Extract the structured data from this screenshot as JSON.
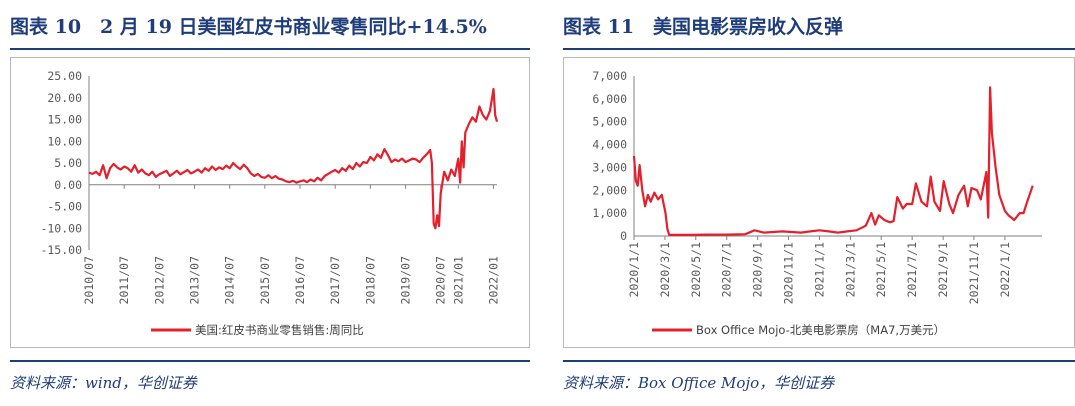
{
  "left": {
    "title": "图表 10　2 月 19 日美国红皮书商业零售同比+14.5%",
    "source": "资料来源：wind，华创证券",
    "chart_data": {
      "type": "line",
      "ylim": [
        -15,
        25
      ],
      "yticks": [
        "25.00",
        "20.00",
        "15.00",
        "10.00",
        "5.00",
        "0.00",
        "-5.00",
        "-10.00",
        "-15.00"
      ],
      "xlim": [
        2010.5,
        2022.1
      ],
      "xticks": [
        "2010/07",
        "2011/07",
        "2012/07",
        "2013/07",
        "2014/07",
        "2015/07",
        "2016/07",
        "2017/07",
        "2018/07",
        "2019/07",
        "2020/07",
        "2021/01",
        "2022/01"
      ],
      "xtick_positions": [
        2010.5,
        2011.5,
        2012.5,
        2013.5,
        2014.5,
        2015.5,
        2016.5,
        2017.5,
        2018.5,
        2019.5,
        2020.5,
        2021.0,
        2022.0
      ],
      "legend_position": "bottom-center",
      "color": "#e3202b",
      "series": [
        {
          "name": "美国:红皮书商业零售销售:周同比",
          "x": [
            2010.5,
            2010.6,
            2010.7,
            2010.8,
            2010.9,
            2011.0,
            2011.1,
            2011.2,
            2011.3,
            2011.4,
            2011.5,
            2011.6,
            2011.7,
            2011.8,
            2011.9,
            2012.0,
            2012.1,
            2012.2,
            2012.3,
            2012.4,
            2012.5,
            2012.6,
            2012.7,
            2012.8,
            2012.9,
            2013.0,
            2013.1,
            2013.2,
            2013.3,
            2013.4,
            2013.5,
            2013.6,
            2013.7,
            2013.8,
            2013.9,
            2014.0,
            2014.1,
            2014.2,
            2014.3,
            2014.4,
            2014.5,
            2014.6,
            2014.7,
            2014.8,
            2014.9,
            2015.0,
            2015.1,
            2015.2,
            2015.3,
            2015.4,
            2015.5,
            2015.6,
            2015.7,
            2015.8,
            2015.9,
            2016.0,
            2016.1,
            2016.2,
            2016.3,
            2016.4,
            2016.5,
            2016.6,
            2016.7,
            2016.8,
            2016.9,
            2017.0,
            2017.1,
            2017.2,
            2017.3,
            2017.4,
            2017.5,
            2017.6,
            2017.7,
            2017.8,
            2017.9,
            2018.0,
            2018.1,
            2018.2,
            2018.3,
            2018.4,
            2018.5,
            2018.6,
            2018.7,
            2018.8,
            2018.9,
            2019.0,
            2019.1,
            2019.2,
            2019.3,
            2019.4,
            2019.5,
            2019.6,
            2019.7,
            2019.8,
            2019.9,
            2020.0,
            2020.1,
            2020.2,
            2020.25,
            2020.3,
            2020.35,
            2020.4,
            2020.45,
            2020.5,
            2020.6,
            2020.7,
            2020.8,
            2020.9,
            2021.0,
            2021.05,
            2021.1,
            2021.15,
            2021.2,
            2021.3,
            2021.4,
            2021.5,
            2021.6,
            2021.7,
            2021.8,
            2021.9,
            2022.0,
            2022.05,
            2022.1
          ],
          "values": [
            2.8,
            2.5,
            3.0,
            2.2,
            4.5,
            1.5,
            3.8,
            4.8,
            4.0,
            3.5,
            4.2,
            3.8,
            3.0,
            4.5,
            2.8,
            3.5,
            2.6,
            2.2,
            3.0,
            1.8,
            2.4,
            2.8,
            3.2,
            2.0,
            2.6,
            3.2,
            2.4,
            2.9,
            3.4,
            2.6,
            3.0,
            3.5,
            2.8,
            3.8,
            3.2,
            4.2,
            3.4,
            4.0,
            3.6,
            4.4,
            3.8,
            5.0,
            4.2,
            3.6,
            4.6,
            3.8,
            2.6,
            2.0,
            2.5,
            1.8,
            1.6,
            2.2,
            1.5,
            2.0,
            1.4,
            1.2,
            0.8,
            0.6,
            0.9,
            0.5,
            0.8,
            1.0,
            0.6,
            1.2,
            0.8,
            1.6,
            1.0,
            2.0,
            2.5,
            3.0,
            3.4,
            2.8,
            3.8,
            3.2,
            4.4,
            3.6,
            5.0,
            4.2,
            5.2,
            5.0,
            6.4,
            5.6,
            7.0,
            6.2,
            8.2,
            6.8,
            5.2,
            5.8,
            5.4,
            6.0,
            5.2,
            5.6,
            6.0,
            5.8,
            5.2,
            6.2,
            7.0,
            8.0,
            5.0,
            -9.0,
            -10.0,
            -7.0,
            -9.5,
            -2.0,
            3.0,
            1.0,
            3.5,
            2.0,
            6.0,
            0.5,
            10.0,
            4.0,
            12.0,
            14.0,
            15.5,
            14.5,
            18.0,
            16.0,
            15.0,
            17.0,
            22.0,
            16.0,
            14.5
          ]
        }
      ]
    }
  },
  "right": {
    "title": "图表 11　美国电影票房收入反弹",
    "source": "资料来源：Box Office Mojo，华创证券",
    "chart_data": {
      "type": "line",
      "ylim": [
        0,
        7000
      ],
      "yticks": [
        "7,000",
        "6,000",
        "5,000",
        "4,000",
        "3,000",
        "2,000",
        "1,000",
        "0"
      ],
      "xlim": [
        2020.0,
        2022.2
      ],
      "xticks": [
        "2020/1/1",
        "2020/3/1",
        "2020/5/1",
        "2020/7/1",
        "2020/9/1",
        "2020/11/1",
        "2021/1/1",
        "2021/3/1",
        "2021/5/1",
        "2021/7/1",
        "2021/9/1",
        "2021/11/1",
        "2022/1/1"
      ],
      "xtick_positions": [
        2020.0,
        2020.167,
        2020.333,
        2020.5,
        2020.667,
        2020.833,
        2021.0,
        2021.167,
        2021.333,
        2021.5,
        2021.667,
        2021.833,
        2022.0
      ],
      "legend_position": "bottom-center",
      "color": "#e3202b",
      "series": [
        {
          "name": "Box Office Mojo-北美电影票房（MA7,万美元）",
          "x": [
            2020.0,
            2020.01,
            2020.02,
            2020.03,
            2020.045,
            2020.06,
            2020.075,
            2020.09,
            2020.11,
            2020.13,
            2020.15,
            2020.17,
            2020.18,
            2020.19,
            2020.2,
            2020.25,
            2020.3,
            2020.4,
            2020.5,
            2020.6,
            2020.65,
            2020.7,
            2020.8,
            2020.9,
            2020.95,
            2021.0,
            2021.05,
            2021.1,
            2021.15,
            2021.2,
            2021.25,
            2021.28,
            2021.3,
            2021.32,
            2021.35,
            2021.38,
            2021.4,
            2021.42,
            2021.45,
            2021.47,
            2021.5,
            2021.52,
            2021.55,
            2021.58,
            2021.6,
            2021.62,
            2021.65,
            2021.67,
            2021.7,
            2021.72,
            2021.75,
            2021.78,
            2021.8,
            2021.82,
            2021.85,
            2021.87,
            2021.9,
            2021.91,
            2021.92,
            2021.93,
            2021.95,
            2021.97,
            2022.0,
            2022.02,
            2022.05,
            2022.08,
            2022.1,
            2022.12,
            2022.15
          ],
          "values": [
            3500,
            2400,
            2200,
            3100,
            2000,
            1300,
            1800,
            1500,
            1900,
            1600,
            1800,
            1000,
            300,
            50,
            50,
            50,
            50,
            60,
            60,
            80,
            250,
            150,
            200,
            150,
            200,
            250,
            200,
            150,
            200,
            250,
            450,
            1000,
            500,
            900,
            700,
            600,
            650,
            1700,
            1200,
            1400,
            1400,
            2300,
            1500,
            1300,
            2600,
            1500,
            1100,
            2400,
            1400,
            1000,
            1800,
            2200,
            1300,
            2100,
            2000,
            1600,
            2800,
            800,
            6500,
            4500,
            3000,
            1800,
            1100,
            900,
            700,
            1000,
            1000,
            1500,
            2200
          ]
        }
      ]
    }
  }
}
